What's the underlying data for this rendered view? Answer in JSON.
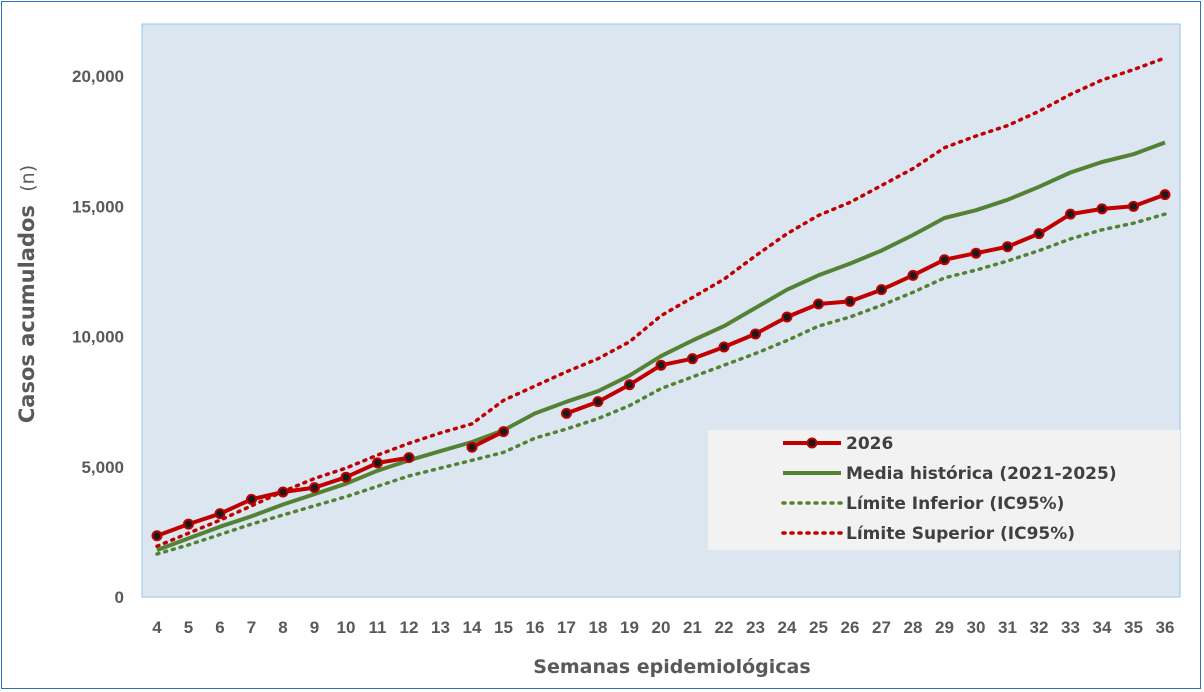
{
  "chart_data": {
    "type": "line",
    "title": "",
    "xlabel": "Semanas epidemiológicas",
    "ylabel": "Casos acumulados",
    "ylabel_unit": "(n)",
    "x": [
      4,
      5,
      6,
      7,
      8,
      9,
      10,
      11,
      12,
      13,
      14,
      15,
      16,
      17,
      18,
      19,
      20,
      21,
      22,
      23,
      24,
      25,
      26,
      27,
      28,
      29,
      30,
      31,
      32,
      33,
      34,
      35,
      36
    ],
    "ylim": [
      0,
      22000
    ],
    "yticks": [
      0,
      5000,
      10000,
      15000,
      20000
    ],
    "ytick_labels": [
      "0",
      "5,000",
      "10,000",
      "15,000",
      "20,000"
    ],
    "grid": false,
    "legend_position": "bottom-right",
    "plot_background": "#dce6f1",
    "series": [
      {
        "name": "2026",
        "color": "#c00000",
        "style": "solid-markers",
        "values": [
          2350,
          2800,
          3200,
          3750,
          4030,
          4200,
          4600,
          5150,
          5350,
          null,
          5750,
          6350,
          null,
          7050,
          7500,
          8150,
          8900,
          9150,
          9600,
          10100,
          10750,
          11250,
          11350,
          11800,
          12350,
          12950,
          13200,
          13450,
          13950,
          14700,
          14900,
          15000,
          15450
        ]
      },
      {
        "name": "Media histórica (2021-2025)",
        "color": "#548235",
        "style": "solid",
        "values": [
          1800,
          2250,
          2700,
          3100,
          3550,
          3950,
          4350,
          4850,
          5250,
          5600,
          5950,
          6400,
          7050,
          7500,
          7900,
          8500,
          9250,
          9850,
          10400,
          11100,
          11800,
          12350,
          12800,
          13300,
          13900,
          14550,
          14850,
          15250,
          15750,
          16300,
          16700,
          17000,
          17450
        ]
      },
      {
        "name": "Límite Inferior (IC95%)",
        "color": "#548235",
        "style": "dotted",
        "values": [
          1650,
          2000,
          2400,
          2800,
          3150,
          3500,
          3850,
          4250,
          4650,
          4950,
          5250,
          5550,
          6100,
          6450,
          6850,
          7350,
          8000,
          8450,
          8900,
          9350,
          9850,
          10400,
          10750,
          11200,
          11700,
          12250,
          12550,
          12900,
          13300,
          13750,
          14100,
          14350,
          14700
        ]
      },
      {
        "name": "Límite Superior (IC95%)",
        "color": "#c00000",
        "style": "dotted",
        "values": [
          1950,
          2450,
          2950,
          3500,
          4050,
          4550,
          4950,
          5450,
          5900,
          6300,
          6650,
          7550,
          8100,
          8650,
          9150,
          9800,
          10800,
          11500,
          12200,
          13100,
          13950,
          14650,
          15150,
          15800,
          16450,
          17250,
          17700,
          18100,
          18650,
          19300,
          19850,
          20250,
          20700
        ]
      }
    ]
  }
}
